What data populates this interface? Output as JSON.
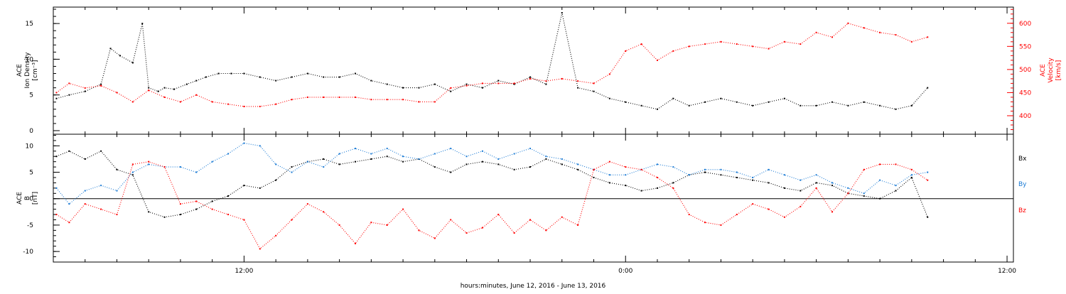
{
  "chart_data": [
    {
      "type": "scatter",
      "xlabel": "hours:minutes, June 12, 2016 - June 13, 2016",
      "x_unit": "hours from 2016-06-12 00:00",
      "xlim": [
        6.0,
        36.2
      ],
      "x_ticks": [
        {
          "value": 12,
          "label": "12:00"
        },
        {
          "value": 24,
          "label": "0:00"
        },
        {
          "value": 36,
          "label": "12:00"
        }
      ],
      "ylabel_left": [
        "ACE",
        "Ion Density",
        "[cm⁻³]"
      ],
      "ylim_left": [
        -0.5,
        17.3
      ],
      "yticks_left": [
        0,
        5,
        10,
        15
      ],
      "ylabel_right": [
        "ACE",
        "Velocity",
        "[km/s]"
      ],
      "ylim_right": [
        360,
        635
      ],
      "yticks_right": [
        400,
        450,
        500,
        550,
        600
      ],
      "color_left": "#000000",
      "color_right": "#ff0000",
      "series": [
        {
          "axis": "left",
          "color": "#000000",
          "x": [
            6.1,
            6.5,
            7.0,
            7.5,
            7.8,
            8.1,
            8.5,
            8.8,
            9.0,
            9.3,
            9.5,
            9.8,
            10.2,
            10.5,
            10.8,
            11.2,
            11.6,
            12.0,
            12.5,
            13.0,
            13.5,
            14.0,
            14.5,
            15.0,
            15.5,
            16.0,
            16.5,
            17.0,
            17.5,
            18.0,
            18.5,
            19.0,
            19.5,
            20.0,
            20.5,
            21.0,
            21.5,
            22.0,
            22.5,
            23.0,
            23.5,
            24.0,
            24.5,
            25.0,
            25.5,
            26.0,
            26.5,
            27.0,
            27.5,
            28.0,
            28.5,
            29.0,
            29.5,
            30.0,
            30.5,
            31.0,
            31.5,
            32.0,
            32.5,
            33.0,
            33.5
          ],
          "y": [
            4.5,
            5.0,
            5.5,
            6.5,
            11.5,
            10.5,
            9.5,
            15.0,
            6.0,
            5.5,
            6.0,
            5.8,
            6.5,
            7.0,
            7.5,
            8.0,
            8.0,
            8.0,
            7.5,
            7.0,
            7.5,
            8.0,
            7.5,
            7.5,
            8.0,
            7.0,
            6.5,
            6.0,
            6.0,
            6.5,
            5.5,
            6.5,
            6.0,
            7.0,
            6.5,
            7.5,
            6.5,
            16.5,
            6.0,
            5.5,
            4.5,
            4.0,
            3.5,
            3.0,
            4.5,
            3.5,
            4.0,
            4.5,
            4.0,
            3.5,
            4.0,
            4.5,
            3.5,
            3.5,
            4.0,
            3.5,
            4.0,
            3.5,
            3.0,
            3.5,
            6.0
          ]
        },
        {
          "axis": "right",
          "color": "#ff0000",
          "x": [
            6.1,
            6.5,
            7.0,
            7.5,
            8.0,
            8.5,
            9.0,
            9.5,
            10.0,
            10.5,
            11.0,
            11.5,
            12.0,
            12.5,
            13.0,
            13.5,
            14.0,
            14.5,
            15.0,
            15.5,
            16.0,
            16.5,
            17.0,
            17.5,
            18.0,
            18.5,
            19.0,
            19.5,
            20.0,
            20.5,
            21.0,
            21.5,
            22.0,
            22.5,
            23.0,
            23.5,
            24.0,
            24.5,
            25.0,
            25.5,
            26.0,
            26.5,
            27.0,
            27.5,
            28.0,
            28.5,
            29.0,
            29.5,
            30.0,
            30.5,
            31.0,
            31.5,
            32.0,
            32.5,
            33.0,
            33.5
          ],
          "y": [
            450,
            470,
            460,
            465,
            450,
            430,
            455,
            440,
            430,
            445,
            430,
            425,
            420,
            420,
            425,
            435,
            440,
            440,
            440,
            440,
            435,
            435,
            435,
            430,
            430,
            460,
            465,
            470,
            470,
            470,
            480,
            475,
            480,
            475,
            470,
            490,
            540,
            555,
            520,
            540,
            550,
            555,
            560,
            555,
            550,
            545,
            560,
            555,
            580,
            570,
            600,
            590,
            580,
            575,
            560,
            570
          ]
        }
      ]
    },
    {
      "type": "scatter",
      "ylabel": [
        "ACE",
        "B",
        "[nT]"
      ],
      "ylim": [
        -12.0,
        12.2
      ],
      "yticks": [
        -10,
        -5,
        0,
        5,
        10
      ],
      "zero_line": true,
      "legend": [
        "Bx",
        "By",
        "Bz"
      ],
      "series": [
        {
          "name": "Bx",
          "color": "#000000",
          "x": [
            6.1,
            6.5,
            7.0,
            7.5,
            8.0,
            8.5,
            9.0,
            9.5,
            10.0,
            10.5,
            11.0,
            11.5,
            12.0,
            12.5,
            13.0,
            13.5,
            14.0,
            14.5,
            15.0,
            15.5,
            16.0,
            16.5,
            17.0,
            17.5,
            18.0,
            18.5,
            19.0,
            19.5,
            20.0,
            20.5,
            21.0,
            21.5,
            22.0,
            22.5,
            23.0,
            23.5,
            24.0,
            24.5,
            25.0,
            25.5,
            26.0,
            26.5,
            27.0,
            27.5,
            28.0,
            28.5,
            29.0,
            29.5,
            30.0,
            30.5,
            31.0,
            31.5,
            32.0,
            32.5,
            33.0,
            33.5
          ],
          "y": [
            8.0,
            9.0,
            7.5,
            9.0,
            5.5,
            4.5,
            -2.5,
            -3.5,
            -3.0,
            -2.0,
            -0.5,
            0.5,
            2.5,
            2.0,
            3.5,
            6.0,
            7.0,
            7.5,
            6.5,
            7.0,
            7.5,
            8.0,
            7.0,
            7.5,
            6.0,
            5.0,
            6.5,
            7.0,
            6.5,
            5.5,
            6.0,
            7.5,
            6.5,
            5.5,
            4.0,
            3.0,
            2.5,
            1.5,
            2.0,
            3.0,
            4.5,
            5.0,
            4.5,
            4.0,
            3.5,
            3.0,
            2.0,
            1.5,
            3.0,
            2.5,
            1.0,
            0.5,
            0.0,
            1.5,
            4.0,
            -3.5
          ]
        },
        {
          "name": "By",
          "color": "#1a7ad4",
          "x": [
            6.1,
            6.5,
            7.0,
            7.5,
            8.0,
            8.5,
            9.0,
            9.5,
            10.0,
            10.5,
            11.0,
            11.5,
            12.0,
            12.5,
            13.0,
            13.5,
            14.0,
            14.5,
            15.0,
            15.5,
            16.0,
            16.5,
            17.0,
            17.5,
            18.0,
            18.5,
            19.0,
            19.5,
            20.0,
            20.5,
            21.0,
            21.5,
            22.0,
            22.5,
            23.0,
            23.5,
            24.0,
            24.5,
            25.0,
            25.5,
            26.0,
            26.5,
            27.0,
            27.5,
            28.0,
            28.5,
            29.0,
            29.5,
            30.0,
            30.5,
            31.0,
            31.5,
            32.0,
            32.5,
            33.0,
            33.5
          ],
          "y": [
            2.0,
            -1.0,
            1.5,
            2.5,
            1.5,
            5.0,
            6.5,
            6.0,
            6.0,
            5.0,
            7.0,
            8.5,
            10.5,
            10.0,
            6.5,
            5.0,
            7.0,
            6.0,
            8.5,
            9.5,
            8.5,
            9.5,
            8.0,
            7.5,
            8.5,
            9.5,
            8.0,
            9.0,
            7.5,
            8.5,
            9.5,
            8.0,
            7.5,
            6.5,
            5.5,
            4.5,
            4.5,
            5.5,
            6.5,
            6.0,
            4.5,
            5.5,
            5.5,
            5.0,
            4.0,
            5.5,
            4.5,
            3.5,
            4.5,
            3.0,
            2.0,
            1.0,
            3.5,
            2.5,
            4.5,
            5.0
          ]
        },
        {
          "name": "Bz",
          "color": "#ff0000",
          "x": [
            6.1,
            6.5,
            7.0,
            7.5,
            8.0,
            8.5,
            9.0,
            9.5,
            10.0,
            10.5,
            11.0,
            11.5,
            12.0,
            12.5,
            13.0,
            13.5,
            14.0,
            14.5,
            15.0,
            15.5,
            16.0,
            16.5,
            17.0,
            17.5,
            18.0,
            18.5,
            19.0,
            19.5,
            20.0,
            20.5,
            21.0,
            21.5,
            22.0,
            22.5,
            23.0,
            23.5,
            24.0,
            24.5,
            25.0,
            25.5,
            26.0,
            26.5,
            27.0,
            27.5,
            28.0,
            28.5,
            29.0,
            29.5,
            30.0,
            30.5,
            31.0,
            31.5,
            32.0,
            32.5,
            33.0,
            33.5
          ],
          "y": [
            -3.0,
            -4.5,
            -1.0,
            -2.0,
            -3.0,
            6.5,
            7.0,
            6.0,
            -1.0,
            -0.5,
            -2.0,
            -3.0,
            -4.0,
            -9.5,
            -7.0,
            -4.0,
            -1.0,
            -2.5,
            -5.0,
            -8.5,
            -4.5,
            -5.0,
            -2.0,
            -6.0,
            -7.5,
            -4.0,
            -6.5,
            -5.5,
            -3.0,
            -6.5,
            -4.0,
            -6.0,
            -3.5,
            -5.0,
            5.5,
            7.0,
            6.0,
            5.5,
            4.0,
            2.0,
            -3.0,
            -4.5,
            -5.0,
            -3.0,
            -1.0,
            -2.0,
            -3.5,
            -1.5,
            2.0,
            -2.5,
            1.0,
            5.5,
            6.5,
            6.5,
            5.5,
            3.5
          ]
        }
      ]
    }
  ]
}
